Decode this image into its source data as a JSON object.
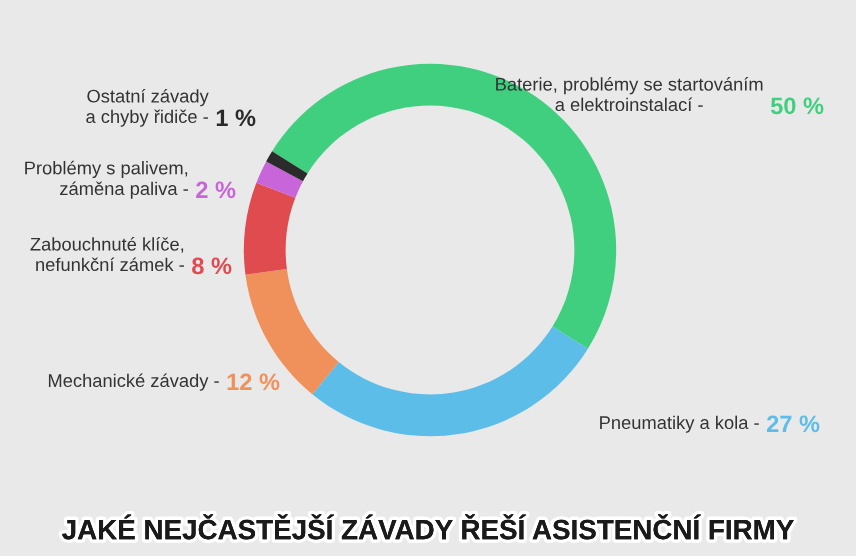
{
  "chart_data": {
    "type": "donut",
    "title": "JAKÉ NEJČASTĚJŠÍ ZÁVADY ŘEŠÍ ASISTENČNÍ FIRMY",
    "categories": [
      "Baterie, problémy se startováním\na elektroinstalací -",
      "Pneumatiky a kola -",
      "Mechanické závady -",
      "Zabouchnuté klíče,\nnefunkční zámek -",
      "Problémy s palivem,\nzáměna paliva -",
      "Ostatní závady\na chyby řidiče -"
    ],
    "values": [
      50,
      27,
      12,
      8,
      2,
      1
    ],
    "colors": [
      "#3fcf7f",
      "#5bbde8",
      "#f0905a",
      "#e04b50",
      "#c865d8",
      "#2b2b2b"
    ],
    "value_labels": [
      "50 %",
      "27 %",
      "12 %",
      "8 %",
      "2 %",
      "1 %"
    ]
  }
}
